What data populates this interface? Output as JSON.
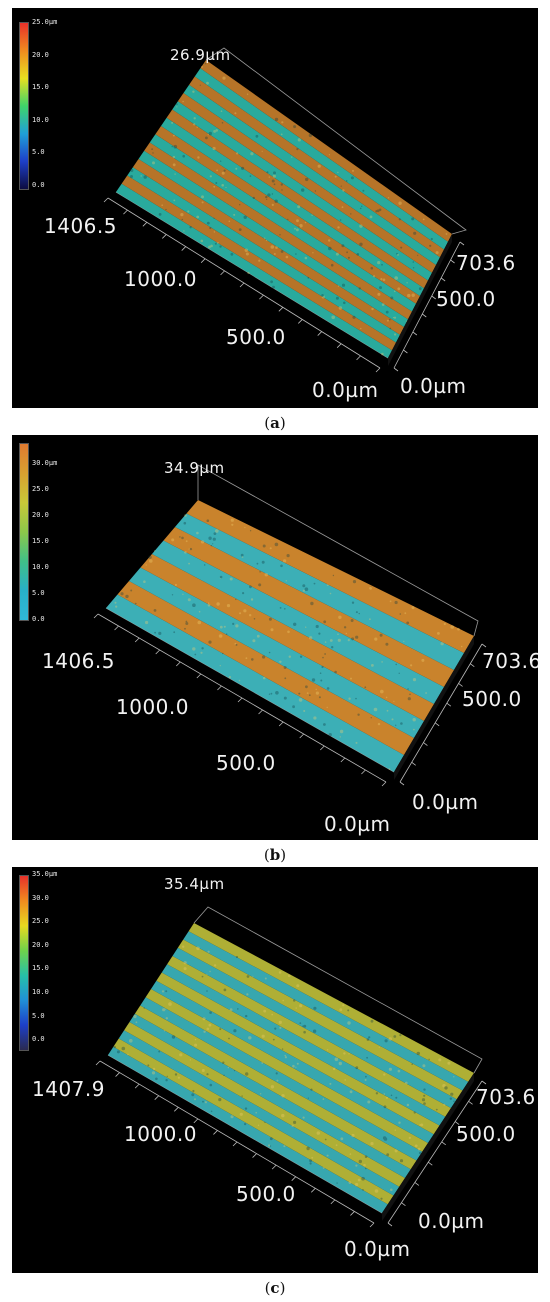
{
  "panels": [
    {
      "caption_open": "(",
      "caption_letter": "a",
      "caption_close": ")",
      "scale_ticks": [
        "25.0µm",
        "20.0",
        "15.0",
        "10.0",
        "5.0",
        "0.0"
      ],
      "scale_colors": [
        "#e8312a",
        "#f08b1f",
        "#e8e020",
        "#3fd46a",
        "#1fa0d8",
        "#1d3fc8",
        "#0c0c40"
      ],
      "z_max": "26.9µm",
      "left_corner": "1406.5",
      "x_mid_1000": "1000.0",
      "x_mid_500": "500.0",
      "x_zero": "0.0µm",
      "y_max": "703.6",
      "y_500": "500.0",
      "y_zero": "0.0µm",
      "stripe_count": 8,
      "stripe_colors": [
        "#2bb3a5",
        "#c07a2a"
      ]
    },
    {
      "caption_open": "(",
      "caption_letter": "b",
      "caption_close": ")",
      "scale_ticks": [
        "30.0µm",
        "25.0",
        "20.0",
        "15.0",
        "10.0",
        "5.0",
        "0.0"
      ],
      "scale_colors": [
        "#e07a30",
        "#d8a030",
        "#c8c838",
        "#8cc84a",
        "#40c088",
        "#28b0c8",
        "#30b8d8"
      ],
      "z_max": "34.9µm",
      "left_corner": "1406.5",
      "x_mid_1000": "1000.0",
      "x_mid_500": "500.0",
      "x_zero": "0.0µm",
      "y_max": "703.6",
      "y_500": "500.0",
      "y_zero": "0.0µm",
      "stripe_count": 4,
      "stripe_colors": [
        "#3fb8c0",
        "#d48a2e"
      ]
    },
    {
      "caption_open": "(",
      "caption_letter": "c",
      "caption_close": ")",
      "scale_ticks": [
        "35.0µm",
        "30.0",
        "25.0",
        "20.0",
        "15.0",
        "10.0",
        "5.0",
        "0.0"
      ],
      "scale_colors": [
        "#e8312a",
        "#f08b1f",
        "#e8d820",
        "#6fd24a",
        "#26c0a8",
        "#2090d8",
        "#1d3fc8",
        "#2a2a50"
      ],
      "z_max": "35.4µm",
      "left_corner": "1407.9",
      "x_mid_1000": "1000.0",
      "x_mid_500": "500.0",
      "x_zero": "0.0µm",
      "y_max": "703.6",
      "y_500": "500.0",
      "y_zero": "0.0µm",
      "stripe_count": 8,
      "stripe_colors": [
        "#3ab0b8",
        "#b8b838"
      ]
    }
  ]
}
